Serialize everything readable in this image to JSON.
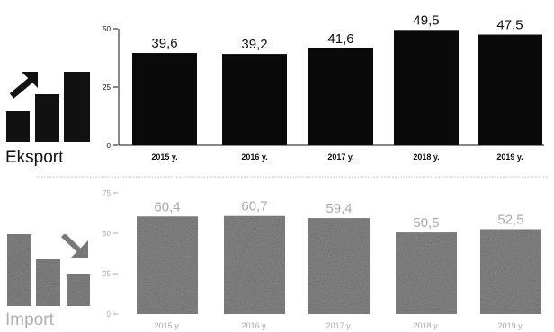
{
  "chart_data": [
    {
      "type": "bar",
      "title": "Eksport",
      "categories": [
        "2015 y.",
        "2016 y.",
        "2017 y.",
        "2018 y.",
        "2019 y."
      ],
      "values": [
        39.6,
        39.2,
        41.6,
        49.5,
        47.5
      ],
      "value_labels": [
        "39,6",
        "39,2",
        "41,6",
        "49,5",
        "47,5"
      ],
      "yticks": [
        "0",
        "25",
        "50"
      ],
      "ylim": [
        0,
        50
      ],
      "grid": false,
      "bar_color": "#0a0a0a",
      "icon": "rising-bars-arrow-icon"
    },
    {
      "type": "bar",
      "title": "Import",
      "categories": [
        "2015 y.",
        "2016 y.",
        "2017 y.",
        "2018 y.",
        "2019 y."
      ],
      "values": [
        60.4,
        60.7,
        59.4,
        50.5,
        52.5
      ],
      "value_labels": [
        "60,4",
        "60,7",
        "59,4",
        "50,5",
        "52,5"
      ],
      "yticks": [
        "0",
        "25",
        "50",
        "75"
      ],
      "ylim": [
        0,
        75
      ],
      "grid": false,
      "bar_color": "#8c8c8c",
      "icon": "falling-bars-arrow-icon"
    }
  ]
}
